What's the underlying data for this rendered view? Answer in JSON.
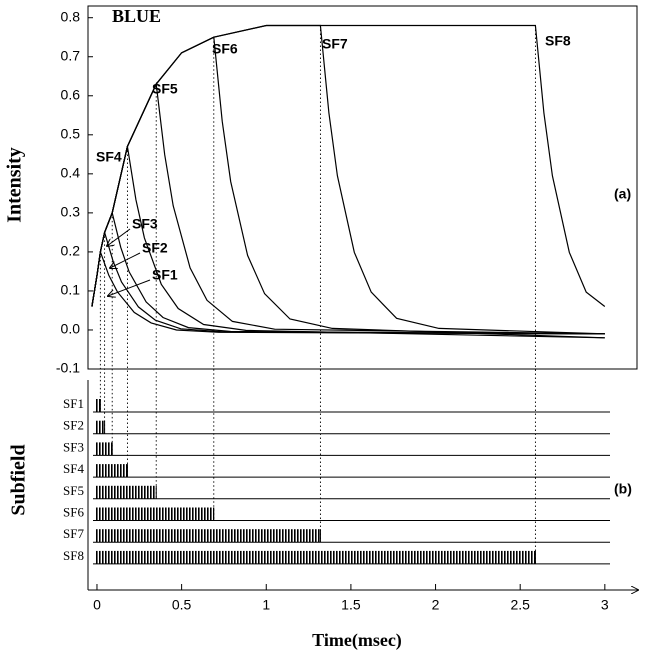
{
  "chart_data": [
    {
      "type": "line",
      "title": "BLUE",
      "ylabel": "Intensity",
      "annotation": "(a)",
      "color": "#000000",
      "xlim": [
        -0.053,
        3.19
      ],
      "ylim": [
        -0.1,
        0.83
      ],
      "yticks": [
        -0.1,
        {
          "value": 0,
          "label": "0.0"
        },
        0.1,
        0.2,
        0.3,
        0.4,
        0.5,
        0.6,
        0.7,
        0.8
      ],
      "series": [
        {
          "name": "SF1",
          "x": [
            -0.03,
            0,
            0.02,
            0.07,
            0.12,
            0.22,
            0.32,
            0.47,
            0.72,
            3.0
          ],
          "values": [
            0.06,
            0.14,
            0.2,
            0.14,
            0.098,
            0.045,
            0.018,
            0.0,
            -0.006,
            -0.01
          ]
        },
        {
          "name": "SF2",
          "x": [
            -0.03,
            0,
            0.02,
            0.045,
            0.095,
            0.145,
            0.245,
            0.345,
            0.495,
            0.745,
            3.0
          ],
          "values": [
            0.06,
            0.14,
            0.2,
            0.25,
            0.176,
            0.123,
            0.059,
            0.025,
            0.003,
            -0.005,
            -0.01
          ]
        },
        {
          "name": "SF3",
          "x": [
            -0.03,
            0,
            0.02,
            0.045,
            0.09,
            0.14,
            0.19,
            0.29,
            0.39,
            0.54,
            0.79,
            3.0
          ],
          "values": [
            0.06,
            0.14,
            0.2,
            0.25,
            0.3,
            0.212,
            0.149,
            0.072,
            0.032,
            0.006,
            -0.004,
            -0.01
          ]
        },
        {
          "name": "SF4",
          "x": [
            -0.03,
            0,
            0.02,
            0.045,
            0.09,
            0.18,
            0.23,
            0.28,
            0.38,
            0.48,
            0.63,
            0.88,
            3.0
          ],
          "values": [
            0.06,
            0.14,
            0.2,
            0.25,
            0.3,
            0.47,
            0.334,
            0.236,
            0.117,
            0.055,
            0.014,
            -0.001,
            -0.02
          ]
        },
        {
          "name": "SF5",
          "x": [
            -0.03,
            0,
            0.02,
            0.045,
            0.09,
            0.18,
            0.35,
            0.4,
            0.45,
            0.55,
            0.65,
            0.8,
            1.05,
            3.0
          ],
          "values": [
            0.06,
            0.14,
            0.2,
            0.25,
            0.3,
            0.47,
            0.63,
            0.449,
            0.318,
            0.159,
            0.076,
            0.022,
            0.002,
            -0.01
          ]
        },
        {
          "name": "SF6",
          "x": [
            -0.03,
            0,
            0.02,
            0.045,
            0.09,
            0.18,
            0.35,
            0.5,
            0.69,
            0.74,
            0.79,
            0.89,
            0.99,
            1.14,
            1.39,
            3.0
          ],
          "values": [
            0.06,
            0.14,
            0.2,
            0.25,
            0.3,
            0.47,
            0.63,
            0.71,
            0.75,
            0.535,
            0.38,
            0.191,
            0.093,
            0.028,
            0.004,
            -0.02
          ]
        },
        {
          "name": "SF7",
          "x": [
            -0.03,
            0,
            0.02,
            0.045,
            0.09,
            0.18,
            0.35,
            0.5,
            0.69,
            1.0,
            1.32,
            1.37,
            1.42,
            1.52,
            1.62,
            1.77,
            2.02,
            3.0
          ],
          "values": [
            0.06,
            0.14,
            0.2,
            0.25,
            0.3,
            0.47,
            0.63,
            0.71,
            0.75,
            0.78,
            0.78,
            0.556,
            0.395,
            0.199,
            0.097,
            0.03,
            0.004,
            -0.01
          ]
        },
        {
          "name": "SF8",
          "x": [
            -0.03,
            0,
            0.02,
            0.045,
            0.09,
            0.18,
            0.35,
            0.5,
            0.69,
            1.0,
            1.32,
            2.59,
            2.64,
            2.69,
            2.79,
            2.89,
            3.0
          ],
          "values": [
            0.06,
            0.14,
            0.2,
            0.25,
            0.3,
            0.47,
            0.63,
            0.71,
            0.75,
            0.78,
            0.78,
            0.78,
            0.556,
            0.395,
            0.199,
            0.097,
            0.06
          ]
        }
      ]
    },
    {
      "type": "pulse",
      "ylabel": "Subfield",
      "xlabel": "Time(msec)",
      "annotation": "(b)",
      "color": "#000000",
      "xlim": [
        -0.053,
        3.19
      ],
      "xticks": [
        0,
        0.5,
        1,
        1.5,
        2,
        2.5,
        3
      ],
      "categories": [
        "SF1",
        "SF2",
        "SF3",
        "SF4",
        "SF5",
        "SF6",
        "SF7",
        "SF8"
      ],
      "values": [
        0.02,
        0.045,
        0.09,
        0.18,
        0.35,
        0.69,
        1.32,
        2.59
      ]
    }
  ]
}
